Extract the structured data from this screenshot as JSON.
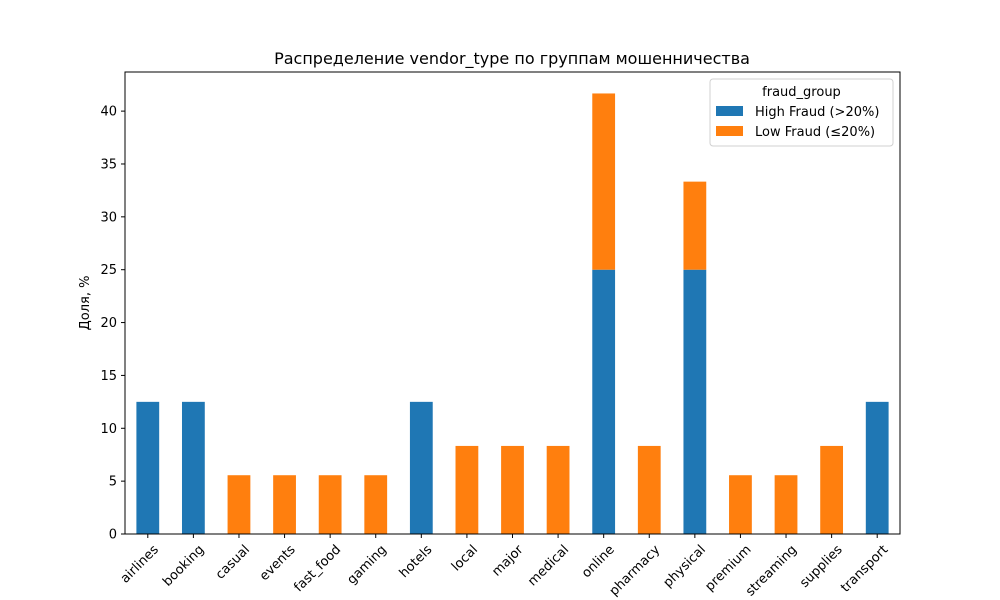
{
  "chart_data": {
    "type": "bar",
    "stacked": true,
    "title": "Распределение vendor_type по группам мошенничества",
    "xlabel": "",
    "ylabel": "Доля, %",
    "ylim": [
      0,
      43.7
    ],
    "yticks": [
      0,
      5,
      10,
      15,
      20,
      25,
      30,
      35,
      40
    ],
    "categories": [
      "airlines",
      "booking",
      "casual",
      "events",
      "fast_food",
      "gaming",
      "hotels",
      "local",
      "major",
      "medical",
      "online",
      "pharmacy",
      "physical",
      "premium",
      "streaming",
      "supplies",
      "transport"
    ],
    "legend": {
      "title": "fraud_group",
      "position": "top-right"
    },
    "series": [
      {
        "name": "High Fraud (>20%)",
        "color": "#1f77b4",
        "values": [
          12.5,
          12.5,
          0,
          0,
          0,
          0,
          12.5,
          0,
          0,
          0,
          25,
          0,
          25,
          0,
          0,
          0,
          12.5
        ]
      },
      {
        "name": "Low Fraud (≤20%)",
        "color": "#ff7f0e",
        "values": [
          0,
          0,
          5.56,
          5.56,
          5.56,
          5.56,
          0,
          8.33,
          8.33,
          8.33,
          16.67,
          8.33,
          8.33,
          5.56,
          5.56,
          8.33,
          0
        ]
      }
    ]
  }
}
